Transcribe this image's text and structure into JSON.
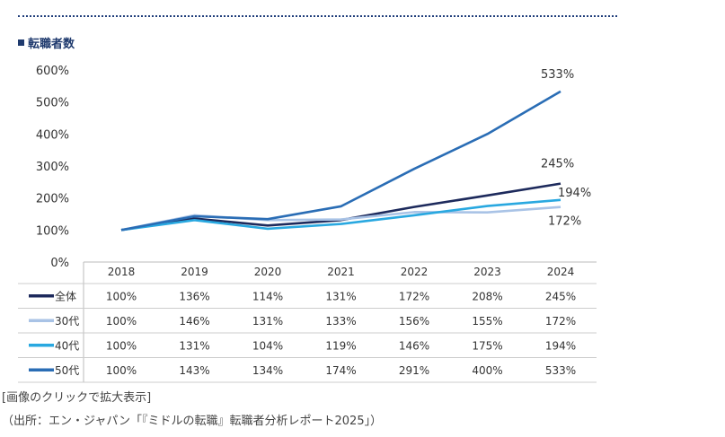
{
  "chart_data": {
    "type": "line",
    "title": "■転職者数",
    "categories": [
      "2018",
      "2019",
      "2020",
      "2021",
      "2022",
      "2023",
      "2024"
    ],
    "y_ticks": [
      "0%",
      "100%",
      "200%",
      "300%",
      "400%",
      "500%",
      "600%"
    ],
    "ylim": [
      0,
      600
    ],
    "series": [
      {
        "name": "全体",
        "color": "#1d2a5c",
        "values": [
          100,
          136,
          114,
          131,
          172,
          208,
          245
        ],
        "labels": [
          "100%",
          "136%",
          "114%",
          "131%",
          "172%",
          "208%",
          "245%"
        ],
        "end_label": "245%"
      },
      {
        "name": "30代",
        "color": "#a9c3e6",
        "values": [
          100,
          146,
          131,
          133,
          156,
          155,
          172
        ],
        "labels": [
          "100%",
          "146%",
          "131%",
          "133%",
          "156%",
          "155%",
          "172%"
        ],
        "end_label": "172%"
      },
      {
        "name": "40代",
        "color": "#29a8e0",
        "values": [
          100,
          131,
          104,
          119,
          146,
          175,
          194
        ],
        "labels": [
          "100%",
          "131%",
          "104%",
          "119%",
          "146%",
          "175%",
          "194%"
        ],
        "end_label": "194%"
      },
      {
        "name": "50代",
        "color": "#2a6db5",
        "values": [
          100,
          143,
          134,
          174,
          291,
          400,
          533
        ],
        "labels": [
          "100%",
          "143%",
          "134%",
          "174%",
          "291%",
          "400%",
          "533%"
        ],
        "end_label": "533%"
      }
    ]
  },
  "captions": {
    "link": "[画像のクリックで拡大表示]",
    "source": "（出所：エン・ジャパン「『ミドルの転職』転職者分析レポート2025」）"
  }
}
